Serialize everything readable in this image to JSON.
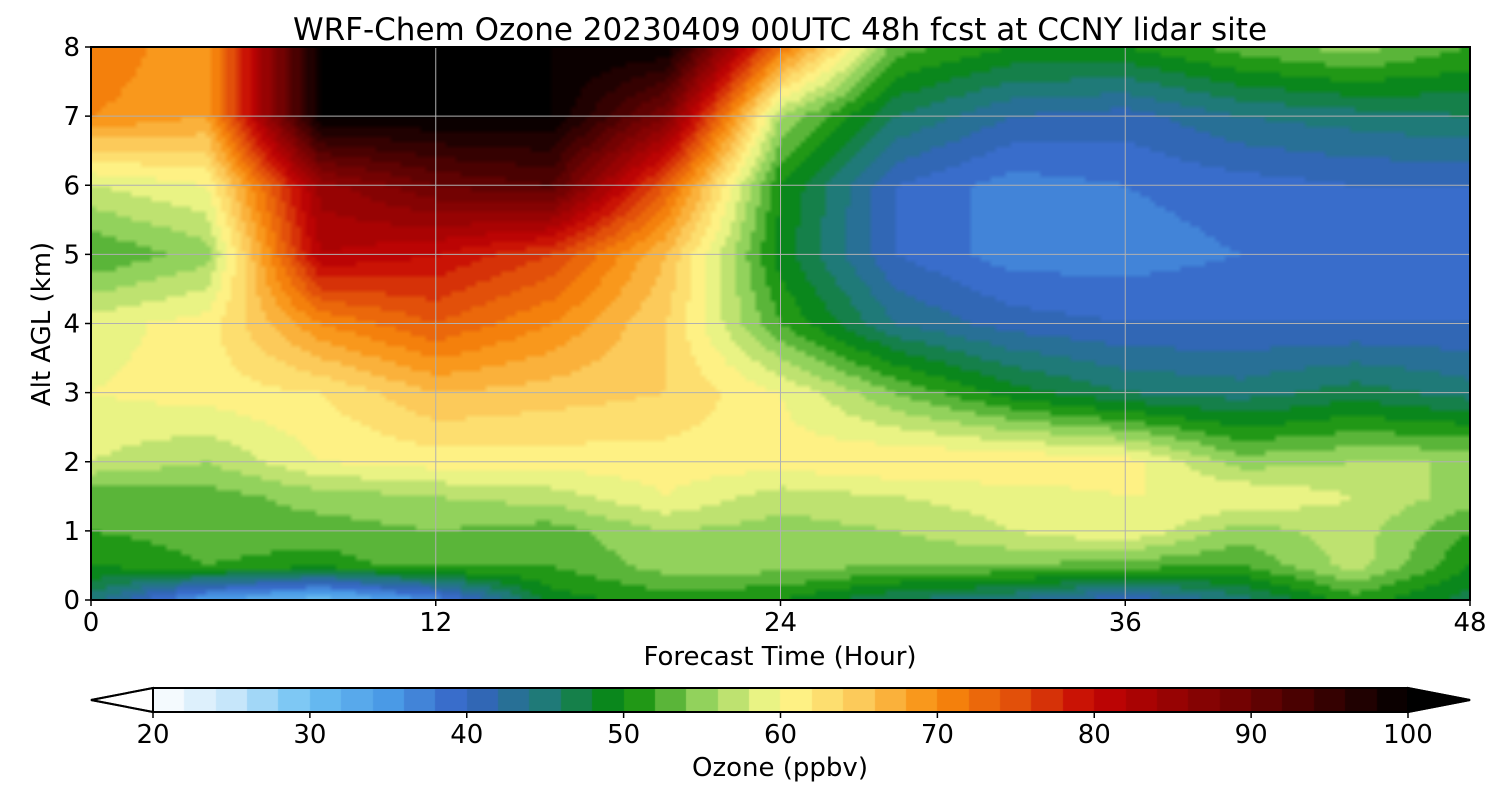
{
  "chart_data": {
    "type": "heatmap",
    "subtype": "filled-contour time-height cross section",
    "title": "WRF-Chem Ozone  20230409 00UTC 48h fcst at CCNY lidar site",
    "xlabel": "Forecast Time (Hour)",
    "ylabel": "Alt AGL (km)",
    "x_ticks": [
      "0",
      "12",
      "24",
      "36",
      "48"
    ],
    "y_ticks": [
      "0",
      "1",
      "2",
      "3",
      "4",
      "5",
      "6",
      "7",
      "8"
    ],
    "xlim": [
      0,
      48
    ],
    "ylim": [
      0,
      8
    ],
    "grid": true,
    "colorbar": {
      "label": "Ozone  (ppbv)",
      "ticks": [
        "20",
        "30",
        "40",
        "50",
        "60",
        "70",
        "80",
        "90",
        "100"
      ],
      "range": [
        20,
        100
      ],
      "extend": "both",
      "stops": [
        {
          "v": 20,
          "c": "#ffffff"
        },
        {
          "v": 25,
          "c": "#c6e6fa"
        },
        {
          "v": 30,
          "c": "#6cc0f2"
        },
        {
          "v": 35,
          "c": "#4a9ae6"
        },
        {
          "v": 40,
          "c": "#3562c4"
        },
        {
          "v": 45,
          "c": "#1f7a78"
        },
        {
          "v": 50,
          "c": "#058a05"
        },
        {
          "v": 55,
          "c": "#92d25c"
        },
        {
          "v": 60,
          "c": "#fffb8e"
        },
        {
          "v": 65,
          "c": "#fcca5a"
        },
        {
          "v": 70,
          "c": "#f88c0c"
        },
        {
          "v": 75,
          "c": "#e2500a"
        },
        {
          "v": 80,
          "c": "#c40404"
        },
        {
          "v": 90,
          "c": "#6a0202"
        },
        {
          "v": 100,
          "c": "#000000"
        }
      ]
    },
    "time_hours": [
      0,
      4,
      8,
      12,
      16,
      20,
      24,
      28,
      32,
      36,
      40,
      44,
      48
    ],
    "altitude_km": [
      0,
      0.5,
      1,
      1.5,
      2,
      3,
      4,
      5,
      6,
      7,
      8
    ],
    "ozone_ppbv_rows_by_altitude": [
      [
        45,
        34,
        30,
        36,
        49,
        51,
        50,
        46,
        44,
        40,
        45,
        51,
        47
      ],
      [
        50,
        52,
        51,
        53,
        52,
        55,
        55,
        54,
        54,
        53,
        52,
        57,
        50
      ],
      [
        52,
        53,
        53,
        54,
        53,
        56,
        55,
        56,
        58,
        60,
        55,
        57,
        52
      ],
      [
        52,
        53,
        55,
        56,
        57,
        60,
        57,
        58,
        59,
        60,
        60,
        58,
        55
      ],
      [
        58,
        56,
        60,
        61,
        61,
        61,
        61,
        62,
        62,
        61,
        55,
        56,
        56
      ],
      [
        60,
        61,
        62,
        66,
        65,
        64,
        60,
        54,
        49,
        46,
        45,
        47,
        45
      ],
      [
        59,
        61,
        70,
        74,
        70,
        64,
        52,
        44,
        41,
        40,
        40,
        40,
        40
      ],
      [
        52,
        55,
        82,
        80,
        76,
        66,
        49,
        40,
        37,
        37,
        38,
        39,
        38
      ],
      [
        58,
        60,
        85,
        90,
        92,
        74,
        50,
        40,
        37,
        38,
        39,
        40,
        40
      ],
      [
        70,
        68,
        100,
        100,
        100,
        88,
        56,
        46,
        42,
        41,
        44,
        45,
        46
      ],
      [
        72,
        68,
        100,
        100,
        100,
        100,
        72,
        53,
        50,
        50,
        53,
        55,
        52
      ]
    ]
  }
}
